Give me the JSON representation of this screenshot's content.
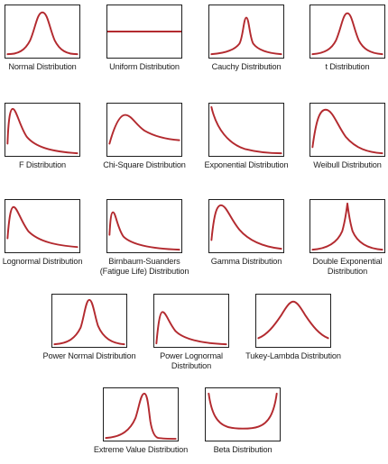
{
  "panels": [
    {
      "label": "Normal Distribution",
      "curve": "normal"
    },
    {
      "label": "Uniform Distribution",
      "curve": "uniform"
    },
    {
      "label": "Cauchy Distribution",
      "curve": "cauchy"
    },
    {
      "label": "t Distribution",
      "curve": "t"
    },
    {
      "label": "F Distribution",
      "curve": "f"
    },
    {
      "label": "Chi-Square Distribution",
      "curve": "chi-square"
    },
    {
      "label": "Exponential Distribution",
      "curve": "exponential"
    },
    {
      "label": "Weibull Distribution",
      "curve": "weibull"
    },
    {
      "label": "Lognormal Distribution",
      "curve": "lognormal"
    },
    {
      "label": "Birnbaum-Suanders\n(Fatigue Life) Distribution",
      "curve": "birnbaum-saunders"
    },
    {
      "label": "Gamma Distribution",
      "curve": "gamma"
    },
    {
      "label": "Double Exponential\nDistribution",
      "curve": "double-exponential"
    },
    {
      "label": "Power Normal Distribution",
      "curve": "power-normal"
    },
    {
      "label": "Power Lognormal\nDistribution",
      "curve": "power-lognormal"
    },
    {
      "label": "Tukey-Lambda Distribution",
      "curve": "tukey-lambda"
    },
    {
      "label": "Extreme Value Distribution",
      "curve": "extreme-value"
    },
    {
      "label": "Beta Distribution",
      "curve": "beta"
    }
  ],
  "colors": {
    "curve": "#b32a2f",
    "frame": "#1e1e1e"
  }
}
